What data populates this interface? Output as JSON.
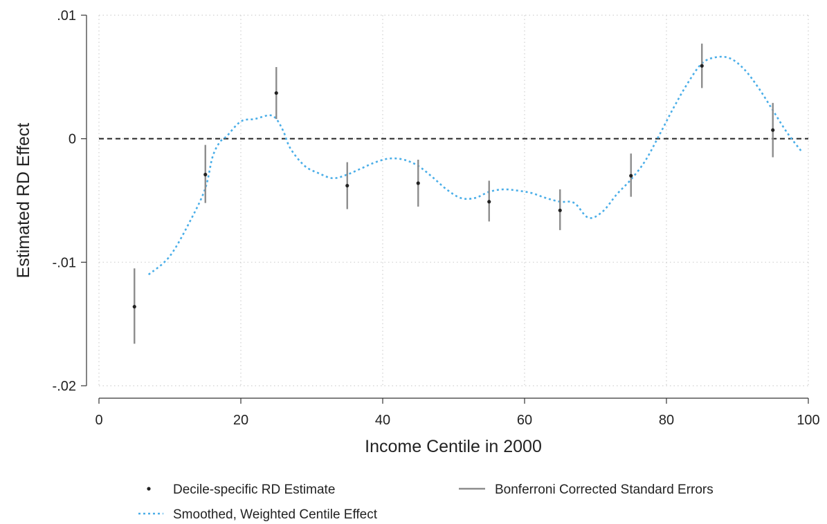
{
  "chart_data": {
    "type": "scatter",
    "xlabel": "Income Centile in 2000",
    "ylabel": "Estimated RD Effect",
    "xlim": [
      0,
      100
    ],
    "ylim": [
      -0.02,
      0.01
    ],
    "x_ticks": [
      0,
      20,
      40,
      60,
      80,
      100
    ],
    "x_tick_labels": [
      "0",
      "20",
      "40",
      "60",
      "80",
      "100"
    ],
    "y_ticks": [
      0.01,
      0,
      -0.01,
      -0.02
    ],
    "y_tick_labels": [
      ".01",
      "0",
      "-.01",
      "-.02"
    ],
    "grid": true,
    "reference_line": {
      "y": 0,
      "style": "dashed",
      "color": "#222222"
    },
    "legend_position": "bottom",
    "series": [
      {
        "name": "Decile-specific RD Estimate",
        "kind": "points",
        "color": "#222222",
        "x": [
          5,
          15,
          25,
          35,
          45,
          55,
          65,
          75,
          85,
          95
        ],
        "y": [
          -0.0136,
          -0.0029,
          0.0037,
          -0.0038,
          -0.0036,
          -0.0051,
          -0.0058,
          -0.003,
          0.0059,
          0.0007
        ]
      },
      {
        "name": "Bonferroni Corrected Standard Errors",
        "kind": "error_bars",
        "color": "#8c8c8c",
        "x": [
          5,
          15,
          25,
          35,
          45,
          55,
          65,
          75,
          85,
          95
        ],
        "low": [
          -0.0166,
          -0.0052,
          0.0016,
          -0.0057,
          -0.0055,
          -0.0067,
          -0.0074,
          -0.0047,
          0.0041,
          -0.0015
        ],
        "high": [
          -0.0105,
          -0.0005,
          0.0058,
          -0.0019,
          -0.0017,
          -0.0034,
          -0.0041,
          -0.0012,
          0.0077,
          0.0029
        ]
      },
      {
        "name": "Smoothed, Weighted Centile Effect",
        "kind": "line",
        "style": "dotted",
        "color": "#4aaee8",
        "x": [
          7,
          10,
          13,
          15,
          16,
          17,
          18,
          20,
          22,
          24,
          25,
          26,
          27,
          29,
          31,
          33,
          35,
          37,
          39,
          41,
          43,
          45,
          47,
          49,
          51,
          53,
          55,
          57,
          59,
          61,
          63,
          65,
          67,
          69,
          71,
          73,
          75,
          77,
          79,
          81,
          83,
          85,
          87,
          89,
          91,
          93,
          95,
          97,
          99
        ],
        "y": [
          -0.011,
          -0.0095,
          -0.0065,
          -0.004,
          -0.0015,
          -0.0003,
          0.0002,
          0.0014,
          0.0016,
          0.0019,
          0.0016,
          0.0006,
          -0.0008,
          -0.0022,
          -0.0028,
          -0.0032,
          -0.0029,
          -0.0024,
          -0.0019,
          -0.0016,
          -0.0017,
          -0.0022,
          -0.0031,
          -0.0041,
          -0.0048,
          -0.0048,
          -0.0043,
          -0.0041,
          -0.0042,
          -0.0044,
          -0.0048,
          -0.0051,
          -0.0052,
          -0.0064,
          -0.0059,
          -0.0045,
          -0.0033,
          -0.0018,
          0.0003,
          0.0025,
          0.0045,
          0.0061,
          0.0066,
          0.0065,
          0.0056,
          0.0041,
          0.0023,
          0.0005,
          -0.001
        ]
      }
    ]
  }
}
